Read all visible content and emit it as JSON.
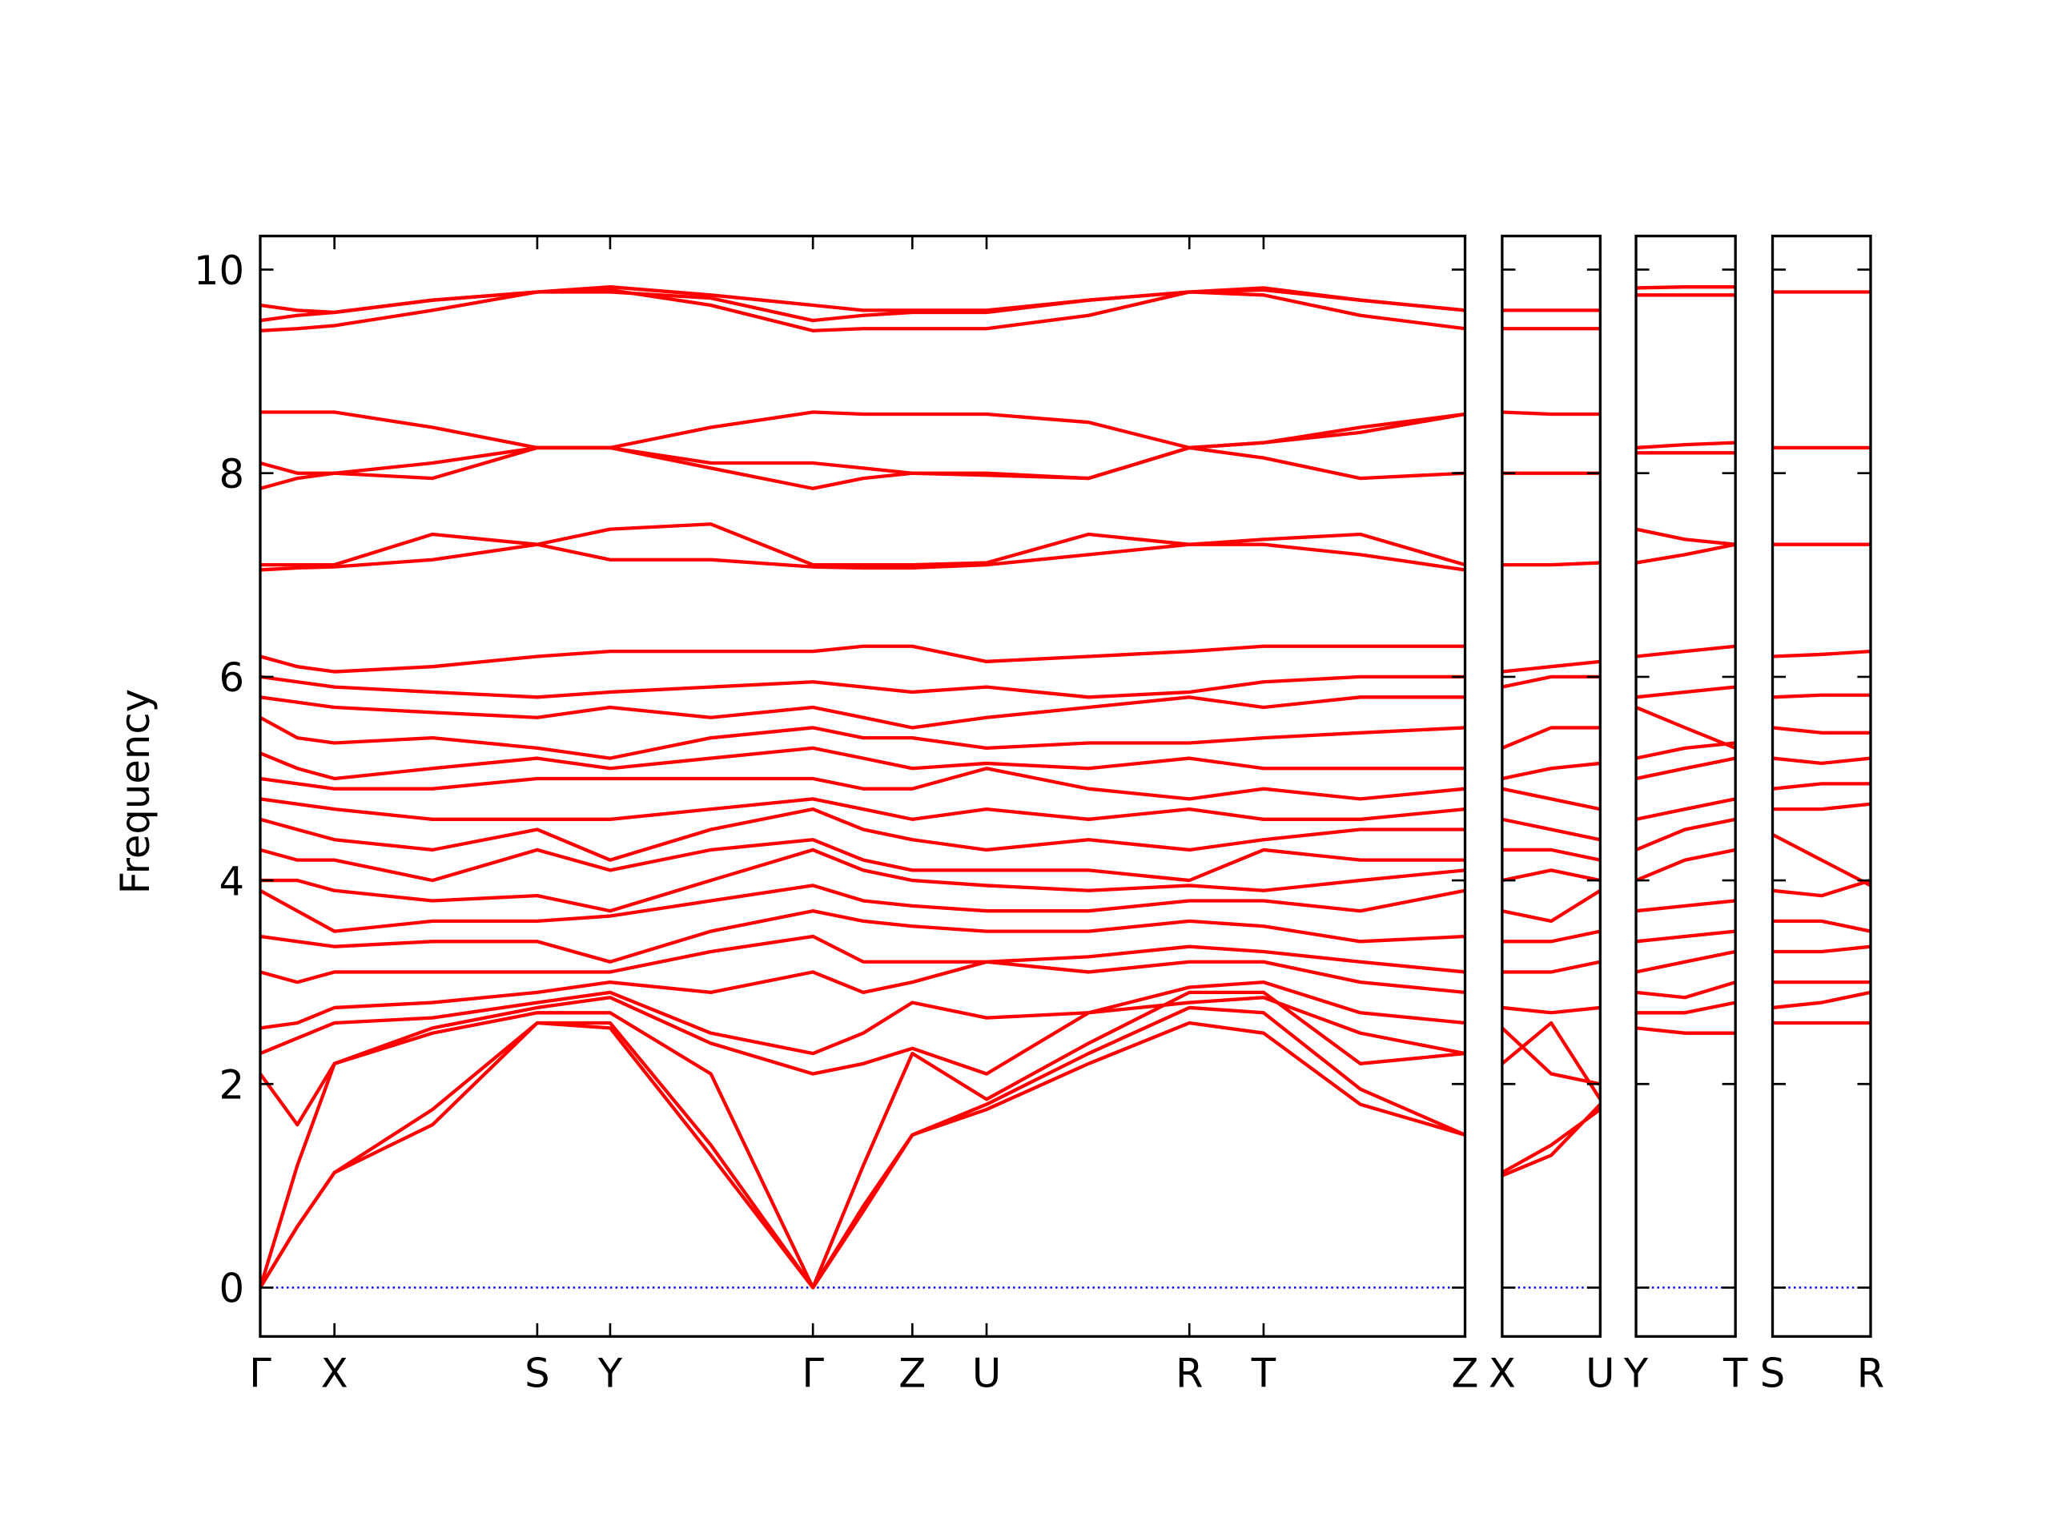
{
  "chart_data": [
    {
      "type": "line",
      "ylabel": "Frequency",
      "color": "#ff0000",
      "ylim": [
        -0.48,
        10.33
      ],
      "yticks": [
        0,
        2,
        4,
        6,
        8,
        10
      ],
      "reference_line": {
        "value": 0,
        "color": "#0000ff"
      },
      "xlim": [
        0,
        9.09
      ],
      "xticks": [
        {
          "value": 0,
          "label": "Γ"
        },
        {
          "value": 0.56,
          "label": "X"
        },
        {
          "value": 2.09,
          "label": "S"
        },
        {
          "value": 2.64,
          "label": "Y"
        },
        {
          "value": 4.17,
          "label": "Γ"
        },
        {
          "value": 4.92,
          "label": "Z"
        },
        {
          "value": 5.48,
          "label": "U"
        },
        {
          "value": 7.01,
          "label": "R"
        },
        {
          "value": 7.57,
          "label": "T"
        },
        {
          "value": 9.09,
          "label": "Z"
        }
      ],
      "x": [
        0,
        0.28,
        0.56,
        1.3,
        2.09,
        2.64,
        3.4,
        4.17,
        4.55,
        4.92,
        5.48,
        6.25,
        7.01,
        7.57,
        8.3,
        9.09
      ],
      "series": [
        {
          "values": [
            0,
            0.6,
            1.13,
            1.6,
            2.6,
            2.55,
            1.3,
            0,
            0.8,
            1.5,
            1.75,
            2.2,
            2.6,
            2.5,
            1.8,
            1.5
          ]
        },
        {
          "values": [
            0,
            0.6,
            1.13,
            1.75,
            2.6,
            2.6,
            1.4,
            0,
            0.75,
            1.5,
            1.8,
            2.3,
            2.75,
            2.7,
            1.95,
            1.5
          ]
        },
        {
          "values": [
            0,
            1.2,
            2.2,
            2.5,
            2.7,
            2.7,
            2.1,
            0,
            1.2,
            2.3,
            1.85,
            2.4,
            2.9,
            2.9,
            2.2,
            2.3
          ]
        },
        {
          "values": [
            2.1,
            1.6,
            2.2,
            2.55,
            2.75,
            2.85,
            2.4,
            2.1,
            2.2,
            2.35,
            2.1,
            2.7,
            2.8,
            2.85,
            2.5,
            2.3
          ]
        },
        {
          "values": [
            2.3,
            2.45,
            2.6,
            2.65,
            2.8,
            2.9,
            2.5,
            2.3,
            2.5,
            2.8,
            2.65,
            2.7,
            2.95,
            3.0,
            2.7,
            2.6
          ]
        },
        {
          "values": [
            2.55,
            2.6,
            2.75,
            2.8,
            2.9,
            3.0,
            2.9,
            3.1,
            2.9,
            3.0,
            3.2,
            3.1,
            3.2,
            3.2,
            3.0,
            2.9
          ]
        },
        {
          "values": [
            3.1,
            3.0,
            3.1,
            3.1,
            3.1,
            3.1,
            3.3,
            3.45,
            3.2,
            3.2,
            3.2,
            3.25,
            3.35,
            3.3,
            3.2,
            3.1
          ]
        },
        {
          "values": [
            3.45,
            3.4,
            3.35,
            3.4,
            3.4,
            3.2,
            3.5,
            3.7,
            3.6,
            3.55,
            3.5,
            3.5,
            3.6,
            3.55,
            3.4,
            3.45
          ]
        },
        {
          "values": [
            3.9,
            3.7,
            3.5,
            3.6,
            3.6,
            3.65,
            3.8,
            3.95,
            3.8,
            3.75,
            3.7,
            3.7,
            3.8,
            3.8,
            3.7,
            3.9
          ]
        },
        {
          "values": [
            4.0,
            4.0,
            3.9,
            3.8,
            3.85,
            3.7,
            4.0,
            4.3,
            4.1,
            4.0,
            3.95,
            3.9,
            3.95,
            3.9,
            4.0,
            4.1
          ]
        },
        {
          "values": [
            4.3,
            4.2,
            4.2,
            4.0,
            4.3,
            4.1,
            4.3,
            4.4,
            4.2,
            4.1,
            4.1,
            4.1,
            4.0,
            4.3,
            4.2,
            4.2
          ]
        },
        {
          "values": [
            4.6,
            4.5,
            4.4,
            4.3,
            4.5,
            4.2,
            4.5,
            4.7,
            4.5,
            4.4,
            4.3,
            4.4,
            4.3,
            4.4,
            4.5,
            4.5
          ]
        },
        {
          "values": [
            4.8,
            4.75,
            4.7,
            4.6,
            4.6,
            4.6,
            4.7,
            4.8,
            4.7,
            4.6,
            4.7,
            4.6,
            4.7,
            4.6,
            4.6,
            4.7
          ]
        },
        {
          "values": [
            5.0,
            4.95,
            4.9,
            4.9,
            5.0,
            5.0,
            5.0,
            5.0,
            4.9,
            4.9,
            5.1,
            4.9,
            4.8,
            4.9,
            4.8,
            4.9
          ]
        },
        {
          "values": [
            5.25,
            5.1,
            5.0,
            5.1,
            5.2,
            5.1,
            5.2,
            5.3,
            5.2,
            5.1,
            5.15,
            5.1,
            5.2,
            5.1,
            5.1,
            5.1
          ]
        },
        {
          "values": [
            5.6,
            5.4,
            5.35,
            5.4,
            5.3,
            5.2,
            5.4,
            5.5,
            5.4,
            5.4,
            5.3,
            5.35,
            5.35,
            5.4,
            5.45,
            5.5
          ]
        },
        {
          "values": [
            5.8,
            5.75,
            5.7,
            5.65,
            5.6,
            5.7,
            5.6,
            5.7,
            5.6,
            5.5,
            5.6,
            5.7,
            5.8,
            5.7,
            5.8,
            5.8
          ]
        },
        {
          "values": [
            6.0,
            5.95,
            5.9,
            5.85,
            5.8,
            5.85,
            5.9,
            5.95,
            5.9,
            5.85,
            5.9,
            5.8,
            5.85,
            5.95,
            6.0,
            6.0
          ]
        },
        {
          "values": [
            6.2,
            6.1,
            6.05,
            6.1,
            6.2,
            6.25,
            6.25,
            6.25,
            6.3,
            6.3,
            6.15,
            6.2,
            6.25,
            6.3,
            6.3,
            6.3
          ]
        },
        {
          "values": [
            7.05,
            7.07,
            7.08,
            7.15,
            7.3,
            7.15,
            7.15,
            7.08,
            7.07,
            7.07,
            7.1,
            7.2,
            7.3,
            7.3,
            7.2,
            7.05
          ]
        },
        {
          "values": [
            7.1,
            7.1,
            7.1,
            7.4,
            7.3,
            7.45,
            7.5,
            7.1,
            7.1,
            7.1,
            7.12,
            7.4,
            7.3,
            7.35,
            7.4,
            7.1
          ]
        },
        {
          "values": [
            7.85,
            7.95,
            8.0,
            7.95,
            8.25,
            8.25,
            8.05,
            7.85,
            7.95,
            8.0,
            8.0,
            7.95,
            8.25,
            8.15,
            7.95,
            8.0
          ]
        },
        {
          "values": [
            8.1,
            8.0,
            8.0,
            8.1,
            8.25,
            8.25,
            8.45,
            8.6,
            8.58,
            8.58,
            8.58,
            8.5,
            8.25,
            8.3,
            8.45,
            8.58
          ]
        },
        {
          "values": [
            8.6,
            8.6,
            8.6,
            8.45,
            8.25,
            8.25,
            8.1,
            8.1,
            8.05,
            8.0,
            7.98,
            7.95,
            8.25,
            8.3,
            8.4,
            8.58
          ]
        },
        {
          "values": [
            9.4,
            9.42,
            9.45,
            9.6,
            9.78,
            9.8,
            9.65,
            9.4,
            9.42,
            9.42,
            9.42,
            9.55,
            9.78,
            9.75,
            9.55,
            9.42
          ]
        },
        {
          "values": [
            9.5,
            9.55,
            9.58,
            9.7,
            9.78,
            9.78,
            9.72,
            9.5,
            9.55,
            9.58,
            9.58,
            9.7,
            9.78,
            9.82,
            9.7,
            9.6
          ]
        },
        {
          "values": [
            9.65,
            9.6,
            9.58,
            9.7,
            9.78,
            9.83,
            9.75,
            9.65,
            9.6,
            9.6,
            9.6,
            9.7,
            9.78,
            9.8,
            9.7,
            9.6
          ]
        }
      ]
    },
    {
      "type": "line",
      "color": "#ff0000",
      "reference_line": {
        "value": 0,
        "color": "#0000ff"
      },
      "xlim": [
        0,
        0.74
      ],
      "xticks": [
        {
          "value": 0,
          "label": "X"
        },
        {
          "value": 0.74,
          "label": "U"
        }
      ],
      "x": [
        0,
        0.37,
        0.74
      ],
      "series": [
        {
          "values": [
            1.1,
            1.3,
            1.8
          ]
        },
        {
          "values": [
            1.13,
            1.4,
            1.75
          ]
        },
        {
          "values": [
            2.2,
            2.6,
            1.85
          ]
        },
        {
          "values": [
            2.55,
            2.1,
            2.0
          ]
        },
        {
          "values": [
            2.75,
            2.7,
            2.75
          ]
        },
        {
          "values": [
            3.1,
            3.1,
            3.2
          ]
        },
        {
          "values": [
            3.4,
            3.4,
            3.5
          ]
        },
        {
          "values": [
            3.7,
            3.6,
            3.9
          ]
        },
        {
          "values": [
            4.0,
            4.1,
            4.0
          ]
        },
        {
          "values": [
            4.3,
            4.3,
            4.2
          ]
        },
        {
          "values": [
            4.6,
            4.5,
            4.4
          ]
        },
        {
          "values": [
            4.9,
            4.8,
            4.7
          ]
        },
        {
          "values": [
            5.0,
            5.1,
            5.15
          ]
        },
        {
          "values": [
            5.3,
            5.5,
            5.5
          ]
        },
        {
          "values": [
            5.9,
            6.0,
            6.0
          ]
        },
        {
          "values": [
            6.05,
            6.1,
            6.15
          ]
        },
        {
          "values": [
            7.1,
            7.1,
            7.12
          ]
        },
        {
          "values": [
            8.0,
            8.0,
            8.0
          ]
        },
        {
          "values": [
            8.6,
            8.58,
            8.58
          ]
        },
        {
          "values": [
            9.42,
            9.42,
            9.42
          ]
        },
        {
          "values": [
            9.6,
            9.6,
            9.6
          ]
        }
      ]
    },
    {
      "type": "line",
      "color": "#ff0000",
      "reference_line": {
        "value": 0,
        "color": "#0000ff"
      },
      "xlim": [
        0,
        0.75
      ],
      "xticks": [
        {
          "value": 0,
          "label": "Y"
        },
        {
          "value": 0.75,
          "label": "T"
        }
      ],
      "x": [
        0,
        0.37,
        0.75
      ],
      "series": [
        {
          "values": [
            2.55,
            2.5,
            2.5
          ]
        },
        {
          "values": [
            2.7,
            2.7,
            2.8
          ]
        },
        {
          "values": [
            2.9,
            2.85,
            3.0
          ]
        },
        {
          "values": [
            3.1,
            3.2,
            3.3
          ]
        },
        {
          "values": [
            3.4,
            3.45,
            3.5
          ]
        },
        {
          "values": [
            3.7,
            3.75,
            3.8
          ]
        },
        {
          "values": [
            4.0,
            4.2,
            4.3
          ]
        },
        {
          "values": [
            4.3,
            4.5,
            4.6
          ]
        },
        {
          "values": [
            4.6,
            4.7,
            4.8
          ]
        },
        {
          "values": [
            5.0,
            5.1,
            5.2
          ]
        },
        {
          "values": [
            5.2,
            5.3,
            5.35
          ]
        },
        {
          "values": [
            5.7,
            5.5,
            5.3
          ]
        },
        {
          "values": [
            5.8,
            5.85,
            5.9
          ]
        },
        {
          "values": [
            6.2,
            6.25,
            6.3
          ]
        },
        {
          "values": [
            7.12,
            7.2,
            7.3
          ]
        },
        {
          "values": [
            7.45,
            7.35,
            7.3
          ]
        },
        {
          "values": [
            8.2,
            8.2,
            8.2
          ]
        },
        {
          "values": [
            8.25,
            8.28,
            8.3
          ]
        },
        {
          "values": [
            9.75,
            9.75,
            9.75
          ]
        },
        {
          "values": [
            9.82,
            9.83,
            9.83
          ]
        }
      ]
    },
    {
      "type": "line",
      "color": "#ff0000",
      "reference_line": {
        "value": 0,
        "color": "#0000ff"
      },
      "xlim": [
        0,
        0.74
      ],
      "xticks": [
        {
          "value": 0,
          "label": "S"
        },
        {
          "value": 0.74,
          "label": "R"
        }
      ],
      "x": [
        0,
        0.37,
        0.74
      ],
      "series": [
        {
          "values": [
            2.6,
            2.6,
            2.6
          ]
        },
        {
          "values": [
            2.75,
            2.8,
            2.9
          ]
        },
        {
          "values": [
            3.0,
            3.0,
            3.0
          ]
        },
        {
          "values": [
            3.3,
            3.3,
            3.35
          ]
        },
        {
          "values": [
            3.6,
            3.6,
            3.5
          ]
        },
        {
          "values": [
            3.9,
            3.85,
            4.0
          ]
        },
        {
          "values": [
            4.45,
            4.2,
            3.95
          ]
        },
        {
          "values": [
            4.7,
            4.7,
            4.75
          ]
        },
        {
          "values": [
            4.9,
            4.95,
            4.95
          ]
        },
        {
          "values": [
            5.2,
            5.15,
            5.2
          ]
        },
        {
          "values": [
            5.5,
            5.45,
            5.45
          ]
        },
        {
          "values": [
            5.8,
            5.82,
            5.82
          ]
        },
        {
          "values": [
            6.2,
            6.22,
            6.25
          ]
        },
        {
          "values": [
            7.3,
            7.3,
            7.3
          ]
        },
        {
          "values": [
            8.25,
            8.25,
            8.25
          ]
        },
        {
          "values": [
            9.78,
            9.78,
            9.78
          ]
        }
      ]
    }
  ]
}
